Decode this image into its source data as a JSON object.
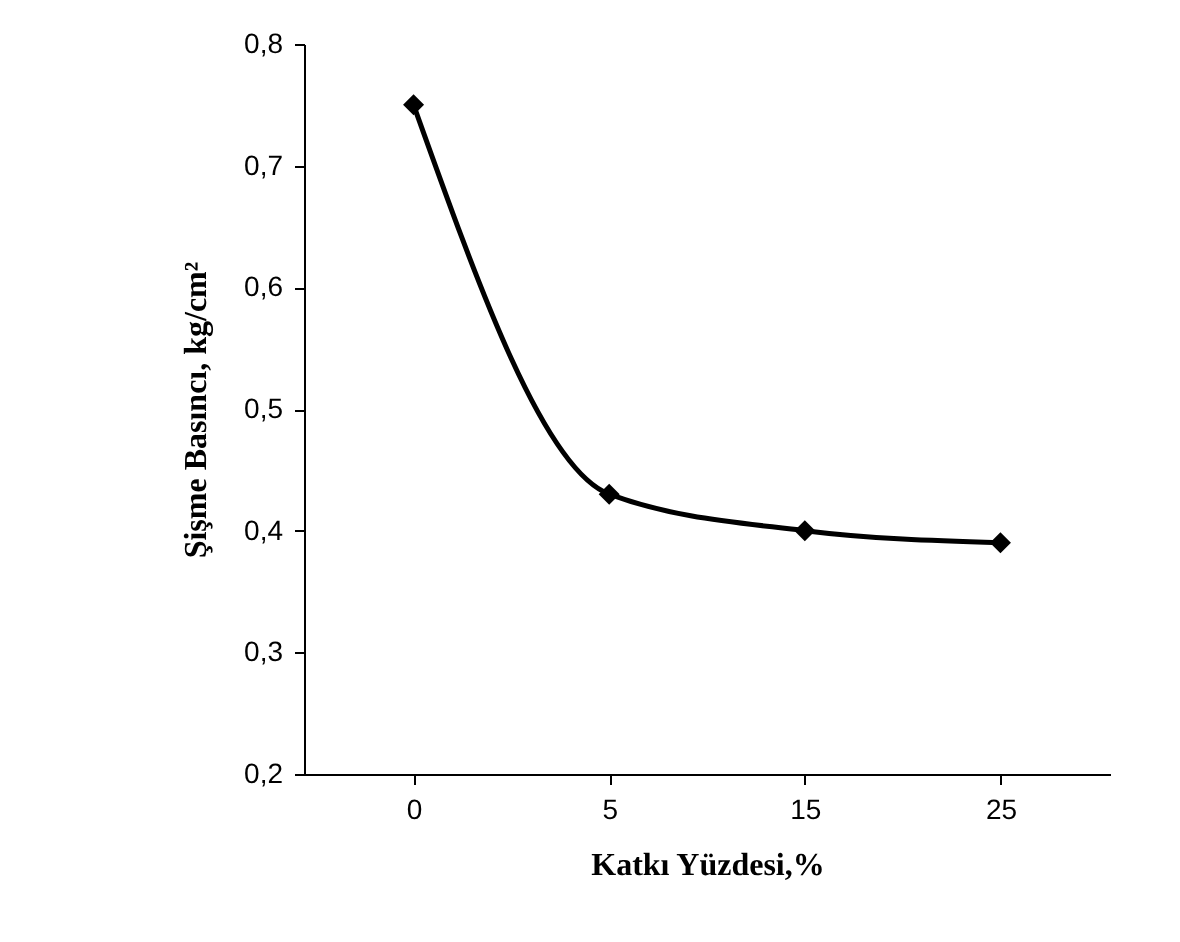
{
  "chart_data": {
    "type": "line",
    "xlabel": "Katkı Yüzdesi,%",
    "ylabel": "Şişme Basıncı, kg/cm²",
    "categories": [
      "0",
      "5",
      "15",
      "25"
    ],
    "series": [
      {
        "color": "#000000",
        "values": [
          0.75,
          0.43,
          0.4,
          0.39
        ]
      }
    ],
    "ylim": [
      0.2,
      0.8
    ],
    "yticks": [
      {
        "value": 0.2,
        "label": "0,2"
      },
      {
        "value": 0.3,
        "label": "0,3"
      },
      {
        "value": 0.4,
        "label": "0,4"
      },
      {
        "value": 0.5,
        "label": "0,5"
      },
      {
        "value": 0.6,
        "label": "0,6"
      },
      {
        "value": 0.7,
        "label": "0,7"
      },
      {
        "value": 0.8,
        "label": "0,8"
      }
    ],
    "marker": "diamond",
    "line_style": "solid",
    "grid": false
  }
}
